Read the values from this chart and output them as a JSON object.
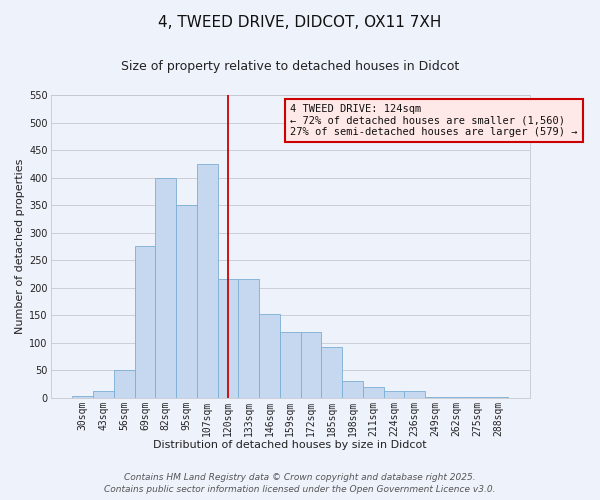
{
  "title": "4, TWEED DRIVE, DIDCOT, OX11 7XH",
  "subtitle": "Size of property relative to detached houses in Didcot",
  "xlabel": "Distribution of detached houses by size in Didcot",
  "ylabel": "Number of detached properties",
  "bar_labels": [
    "30sqm",
    "43sqm",
    "56sqm",
    "69sqm",
    "82sqm",
    "95sqm",
    "107sqm",
    "120sqm",
    "133sqm",
    "146sqm",
    "159sqm",
    "172sqm",
    "185sqm",
    "198sqm",
    "211sqm",
    "224sqm",
    "236sqm",
    "249sqm",
    "262sqm",
    "275sqm",
    "288sqm"
  ],
  "bar_values": [
    3,
    12,
    50,
    275,
    400,
    350,
    425,
    215,
    215,
    152,
    120,
    120,
    93,
    30,
    20,
    12,
    12,
    2,
    2,
    2,
    1
  ],
  "bar_color": "#c5d8f0",
  "bar_edge_color": "#7bafd4",
  "vline_x": 7,
  "vline_color": "#cc0000",
  "ylim": [
    0,
    550
  ],
  "yticks": [
    0,
    50,
    100,
    150,
    200,
    250,
    300,
    350,
    400,
    450,
    500,
    550
  ],
  "annotation_title": "4 TWEED DRIVE: 124sqm",
  "annotation_line1": "← 72% of detached houses are smaller (1,560)",
  "annotation_line2": "27% of semi-detached houses are larger (579) →",
  "annotation_box_facecolor": "#ffe8e8",
  "annotation_box_edgecolor": "#cc0000",
  "footer1": "Contains HM Land Registry data © Crown copyright and database right 2025.",
  "footer2": "Contains public sector information licensed under the Open Government Licence v3.0.",
  "bg_color": "#eef2fb",
  "grid_color": "#c8c8d0",
  "title_fontsize": 11,
  "subtitle_fontsize": 9,
  "axis_label_fontsize": 8,
  "tick_fontsize": 7,
  "footer_fontsize": 6.5
}
